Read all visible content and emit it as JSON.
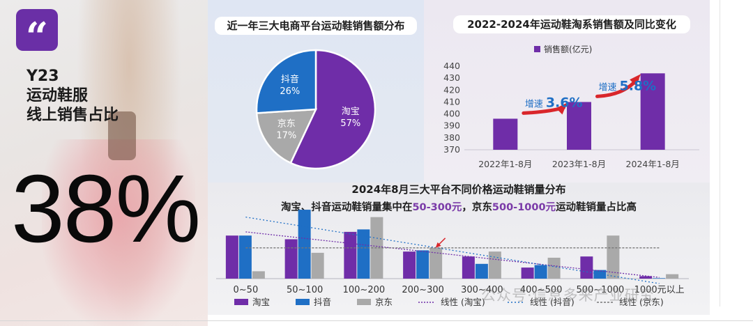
{
  "hero": {
    "badge": "“",
    "lines": [
      "Y23",
      "运动鞋服",
      "线上销售占比"
    ],
    "share": "38%"
  },
  "colors": {
    "purple": "#6f2da8",
    "blue": "#1f6fc5",
    "gray": "#a9a9a9",
    "accent": "#7a3aa8",
    "arrow_red": "#d9262b",
    "growth_blue": "#1f6fc5"
  },
  "watermark": "公众号·信息多来产业研究",
  "chart_data": [
    {
      "id": "platform_share",
      "type": "pie",
      "title": "近一年三大电商平台运动鞋销售额分布",
      "slices": [
        {
          "name": "淘宝",
          "value": 57,
          "label": "57%",
          "color": "#6f2da8"
        },
        {
          "name": "京东",
          "value": 17,
          "label": "17%",
          "color": "#a9a9a9"
        },
        {
          "name": "抖音",
          "value": 26,
          "label": "26%",
          "color": "#1f6fc5"
        }
      ]
    },
    {
      "id": "taobao_sales",
      "type": "bar",
      "title": "2022-2024年运动鞋淘系销售额及同比变化",
      "legend": "销售额(亿元)",
      "categories": [
        "2022年1-8月",
        "2023年1-8月",
        "2024年1-8月"
      ],
      "values": [
        396,
        410,
        434
      ],
      "ylim": [
        370,
        440
      ],
      "yticks": [
        370,
        380,
        390,
        400,
        410,
        420,
        430,
        440
      ],
      "annotations": [
        {
          "prefix": "增速",
          "value": "3.6%"
        },
        {
          "prefix": "增速",
          "value": "5.8%"
        }
      ]
    },
    {
      "id": "price_distribution",
      "type": "bar",
      "title": "2024年8月三大平台不同价格运动鞋销量分布",
      "subtitle": {
        "p1": "淘宝、抖音运动鞋销量集中在",
        "h1": "50-300元",
        "p2": "，京东",
        "h2": "500-1000元",
        "p3": "运动鞋销量占比高"
      },
      "categories": [
        "0~50",
        "50~100",
        "100~200",
        "200~300",
        "300~400",
        "400~500",
        "500~1000",
        "1000元以上"
      ],
      "series": [
        {
          "name": "淘宝",
          "color": "#6f2da8",
          "values": [
            17.5,
            16,
            19,
            11,
            9,
            4.5,
            9,
            1
          ]
        },
        {
          "name": "抖音",
          "color": "#1f6fc5",
          "values": [
            17.5,
            28,
            20,
            11.5,
            6,
            5.5,
            3.5,
            0.2
          ]
        },
        {
          "name": "京东",
          "color": "#a9a9a9",
          "values": [
            3,
            10.5,
            25,
            12.5,
            11,
            8.5,
            17.5,
            1.8
          ]
        }
      ],
      "trendlines": [
        {
          "name": "线性 (淘宝)",
          "color": "#6f2da8",
          "from": 19,
          "to": 0.5
        },
        {
          "name": "线性 (抖音)",
          "color": "#1f6fc5",
          "from": 25,
          "to": -2
        },
        {
          "name": "线性 (京东)",
          "color": "#777777",
          "from": 12.5,
          "to": 12.5
        }
      ],
      "ylim": [
        0,
        30
      ]
    }
  ]
}
